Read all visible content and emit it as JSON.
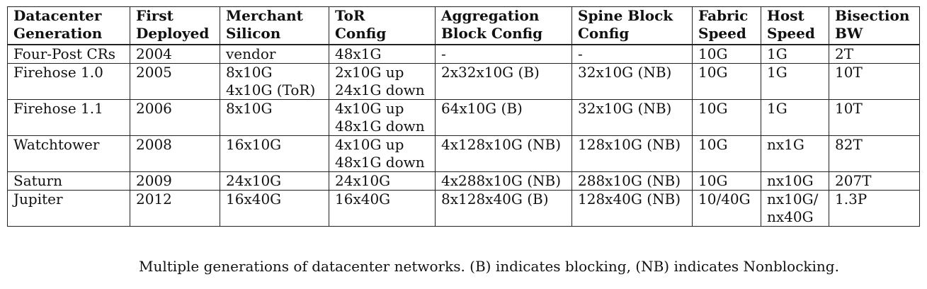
{
  "table": {
    "headers": [
      "Datacenter\nGeneration",
      "First\nDeployed",
      "Merchant\nSilicon",
      "ToR\nConfig",
      "Aggregation\nBlock Config",
      "Spine Block\nConfig",
      "Fabric\nSpeed",
      "Host\nSpeed",
      "Bisection\nBW"
    ],
    "rows": [
      [
        "Four-Post CRs",
        "2004",
        "vendor",
        "48x1G",
        "-",
        "-",
        "10G",
        "1G",
        "2T"
      ],
      [
        "Firehose 1.0",
        "2005",
        "8x10G\n4x10G (ToR)",
        "2x10G up\n24x1G down",
        "2x32x10G (B)",
        "32x10G (NB)",
        "10G",
        "1G",
        "10T"
      ],
      [
        "Firehose 1.1",
        "2006",
        "8x10G",
        "4x10G up\n48x1G down",
        "64x10G (B)",
        "32x10G (NB)",
        "10G",
        "1G",
        "10T"
      ],
      [
        "Watchtower",
        "2008",
        "16x10G",
        "4x10G up\n48x1G down",
        "4x128x10G (NB)",
        "128x10G (NB)",
        "10G",
        "nx1G",
        "82T"
      ],
      [
        "Saturn",
        "2009",
        "24x10G",
        "24x10G",
        "4x288x10G (NB)",
        "288x10G (NB)",
        "10G",
        "nx10G",
        "207T"
      ],
      [
        "Jupiter",
        "2012",
        "16x40G",
        "16x40G",
        "8x128x40G (B)",
        "128x40G (NB)",
        "10/40G",
        "nx10G/\nnx40G",
        "1.3P"
      ]
    ]
  },
  "caption": "Multiple generations of datacenter networks. (B) indicates blocking, (NB) indicates Nonblocking."
}
